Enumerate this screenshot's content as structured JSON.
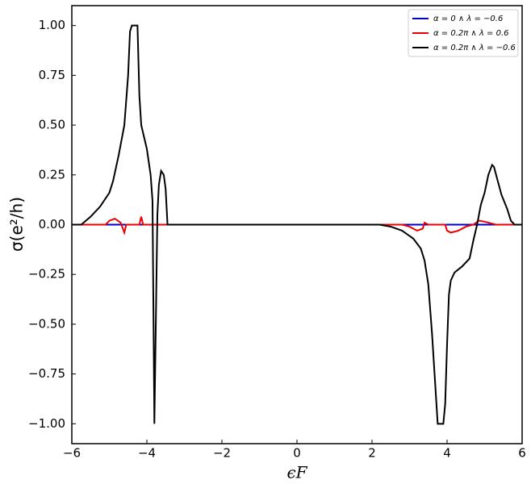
{
  "chart_data": {
    "type": "line",
    "x_label": "ϵF",
    "y_label": "σ(e²/h)",
    "xlim": [
      -6,
      6
    ],
    "ylim": [
      -1.1,
      1.1
    ],
    "xticks": [
      {
        "value": -6,
        "label": "−6"
      },
      {
        "value": -4,
        "label": "−4"
      },
      {
        "value": -2,
        "label": "−2"
      },
      0,
      2,
      4,
      6
    ],
    "yticks": [
      {
        "value": -1,
        "label": "−1.00"
      },
      {
        "value": -0.75,
        "label": "−0.75"
      },
      {
        "value": -0.5,
        "label": "−0.50"
      },
      {
        "value": -0.25,
        "label": "−0.25"
      },
      {
        "value": 0,
        "label": "0.00"
      },
      {
        "value": 0.25,
        "label": "0.25"
      },
      {
        "value": 0.5,
        "label": "0.50"
      },
      {
        "value": 0.75,
        "label": "0.75"
      },
      {
        "value": 1,
        "label": "1.00"
      }
    ],
    "legend": "upper right",
    "series": [
      {
        "name": "α = 0 ∧ λ = −0.6",
        "color": "#0000cc",
        "x": [
          -6,
          6
        ],
        "values": [
          0,
          0
        ]
      },
      {
        "name": "α = 0.2π ∧ λ = 0.6",
        "color": "#ee0000",
        "x": [
          -6,
          -5.1,
          -5.0,
          -4.85,
          -4.7,
          -4.6,
          -4.55,
          -4.2,
          -4.15,
          -4.1,
          -3.6,
          2.8,
          3.0,
          3.2,
          3.35,
          3.4,
          3.5,
          3.95,
          4.0,
          4.1,
          4.3,
          4.5,
          4.7,
          4.85,
          5.0,
          5.3,
          6
        ],
        "values": [
          0,
          0,
          0.02,
          0.03,
          0.01,
          -0.04,
          0,
          0,
          0.04,
          0,
          0,
          0,
          -0.01,
          -0.03,
          -0.02,
          0.01,
          0,
          0,
          -0.03,
          -0.04,
          -0.03,
          -0.01,
          0,
          0.02,
          0.015,
          0,
          0
        ]
      },
      {
        "name": "α = 0.2π ∧ λ = −0.6",
        "color": "#000000",
        "x": [
          -6,
          -5.75,
          -5.5,
          -5.25,
          -5.0,
          -4.9,
          -4.75,
          -4.6,
          -4.5,
          -4.45,
          -4.4,
          -4.25,
          -4.2,
          -4.15,
          -4.0,
          -3.9,
          -3.85,
          -3.8,
          -3.72,
          -3.68,
          -3.62,
          -3.55,
          -3.5,
          -3.45,
          2.2,
          2.5,
          2.8,
          3.1,
          3.3,
          3.4,
          3.5,
          3.6,
          3.7,
          3.75,
          3.9,
          3.95,
          4.0,
          4.05,
          4.1,
          4.2,
          4.4,
          4.6,
          4.7,
          4.8,
          4.9,
          5.0,
          5.1,
          5.2,
          5.25,
          5.35,
          5.45,
          5.6,
          5.7,
          5.8,
          6
        ],
        "values": [
          0,
          0,
          0.04,
          0.09,
          0.16,
          0.22,
          0.35,
          0.5,
          0.75,
          0.97,
          1.0,
          1.0,
          0.65,
          0.5,
          0.38,
          0.25,
          0.12,
          -1.0,
          0.05,
          0.2,
          0.27,
          0.25,
          0.18,
          0,
          0,
          -0.01,
          -0.03,
          -0.07,
          -0.12,
          -0.18,
          -0.3,
          -0.55,
          -0.85,
          -1.0,
          -1.0,
          -0.9,
          -0.6,
          -0.35,
          -0.28,
          -0.24,
          -0.21,
          -0.17,
          -0.08,
          0,
          0.1,
          0.16,
          0.25,
          0.3,
          0.29,
          0.22,
          0.15,
          0.08,
          0.02,
          0,
          0
        ]
      }
    ]
  }
}
